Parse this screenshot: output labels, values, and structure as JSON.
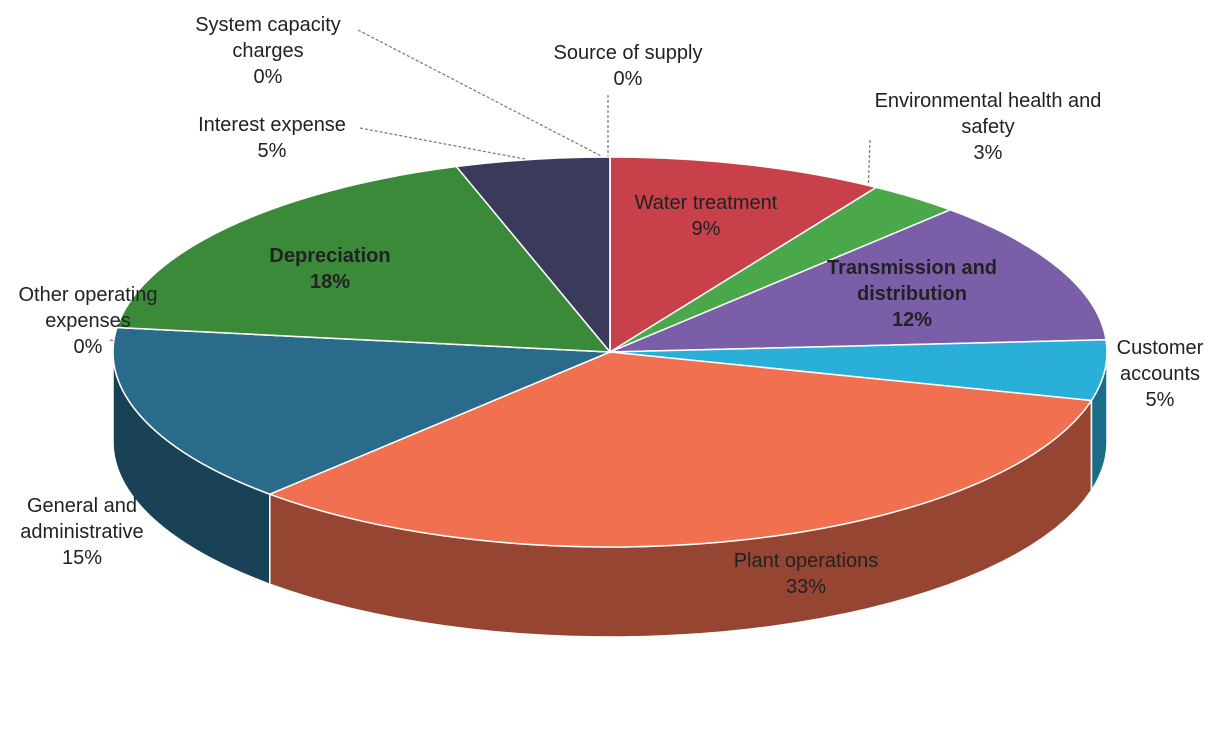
{
  "chart_data": {
    "type": "pie",
    "categories": [
      "Source of supply",
      "Water treatment",
      "Environmental health and safety",
      "Transmission and distribution",
      "Customer accounts",
      "Plant operations",
      "General and administrative",
      "Other operating expenses",
      "Depreciation",
      "Interest expense",
      "System capacity charges"
    ],
    "values": [
      0,
      9,
      3,
      12,
      5,
      33,
      15,
      0,
      18,
      5,
      0
    ],
    "value_labels": [
      "0%",
      "9%",
      "3%",
      "12%",
      "5%",
      "33%",
      "15%",
      "0%",
      "18%",
      "5%",
      "0%"
    ],
    "colors": [
      "#2a8a8a",
      "#c8404a",
      "#4aa84a",
      "#7a5ea8",
      "#2ab0d8",
      "#f07050",
      "#2a6a8a",
      "#b0b0b0",
      "#3a8a3a",
      "#3a3a5a",
      "#4a7ab0"
    ]
  }
}
